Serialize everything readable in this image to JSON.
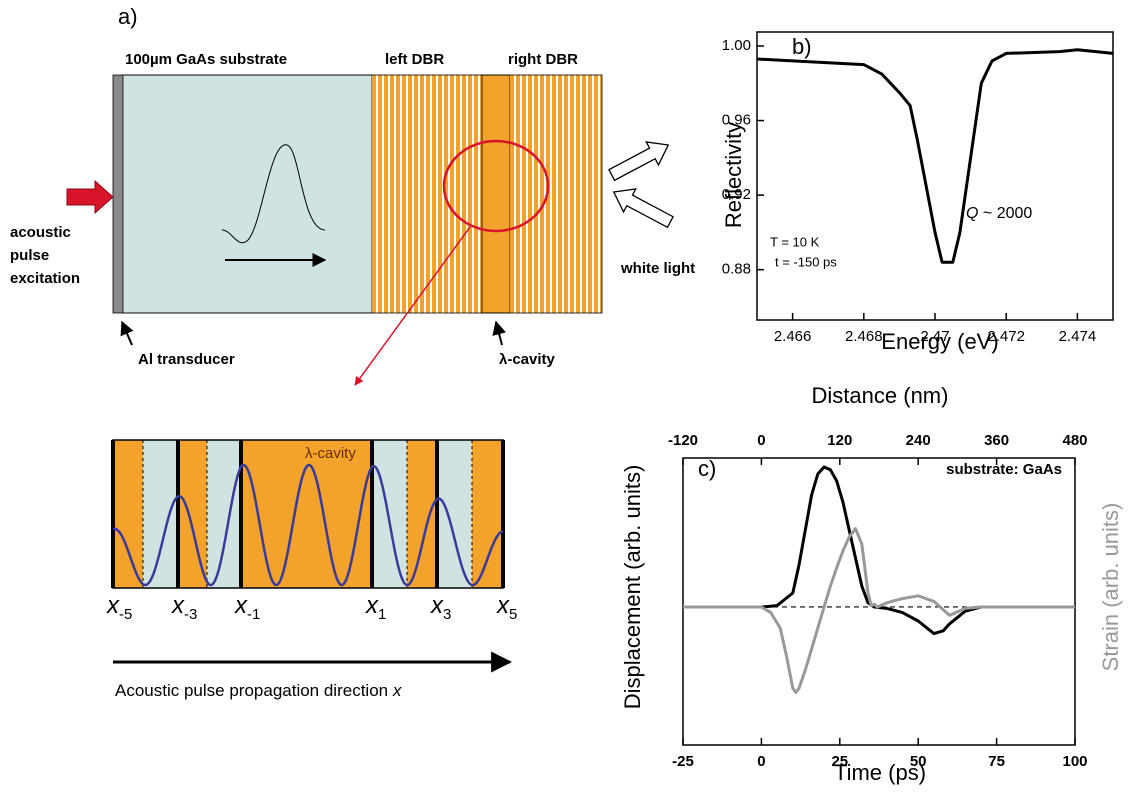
{
  "panel_a": {
    "label": "a)",
    "substrate": "100µm GaAs substrate",
    "left_dbr": "left DBR",
    "right_dbr": "right DBR",
    "excitation": [
      "acoustic",
      "pulse",
      "excitation"
    ],
    "transducer": "Al transducer",
    "cavity": "λ-cavity",
    "white_light": "white light"
  },
  "zoom": {
    "cavity": "λ-cavity",
    "positions": [
      {
        "base": "x",
        "sub": "-5"
      },
      {
        "base": "x",
        "sub": "-3"
      },
      {
        "base": "x",
        "sub": "-1"
      },
      {
        "base": "x",
        "sub": "1"
      },
      {
        "base": "x",
        "sub": "3"
      },
      {
        "base": "x",
        "sub": "5"
      }
    ],
    "direction": "Acoustic pulse propagation direction",
    "direction_var": "x"
  },
  "chart_data": [
    {
      "type": "line",
      "label": "b)",
      "x_label": "Energy (eV)",
      "y_label": "Reflectivity",
      "q_symbol": "Q",
      "q_text": "~ 2000",
      "conditions": [
        "T = 10 K",
        "t = -150 ps"
      ],
      "x": [
        2.465,
        2.467,
        2.468,
        2.4685,
        2.469,
        2.4693,
        2.4695,
        2.4698,
        2.47,
        2.4702,
        2.4705,
        2.4707,
        2.471,
        2.4713,
        2.4716,
        2.472,
        2.4735,
        2.474,
        2.475
      ],
      "values": [
        0.993,
        0.991,
        0.99,
        0.985,
        0.975,
        0.968,
        0.95,
        0.92,
        0.9,
        0.884,
        0.884,
        0.9,
        0.94,
        0.98,
        0.992,
        0.996,
        0.997,
        0.998,
        0.996
      ],
      "color": "#000000",
      "xlim": [
        2.465,
        2.475
      ],
      "ylim": [
        0.853,
        1.0075
      ],
      "xticks": [
        2.466,
        2.468,
        2.47,
        2.472,
        2.474
      ],
      "yticks": [
        0.88,
        0.92,
        0.96,
        {
          "value": 1,
          "label": "1.00"
        }
      ]
    },
    {
      "type": "line",
      "label": "c)",
      "x_label": "Time (ps)",
      "x2_label": "Distance (nm)",
      "annotation": "substrate: GaAs",
      "xlim": [
        -25,
        100
      ],
      "xticks": [
        -25,
        0,
        25,
        50,
        75,
        100
      ],
      "x2lim": [
        -120,
        480
      ],
      "x2ticks": [
        -120,
        0,
        120,
        240,
        360,
        480
      ],
      "ylim": [
        -0.986,
        1.064
      ],
      "y2lim": [
        -0.986,
        1.064
      ],
      "series": [
        {
          "name": "Displacement (arb. units)",
          "color": "#000000",
          "x": [
            -25,
            0,
            5,
            10,
            12,
            14,
            16,
            18,
            20,
            22,
            24,
            26,
            28,
            30,
            32,
            34,
            36,
            40,
            45,
            50,
            55,
            58,
            60,
            65,
            70,
            100
          ],
          "values": [
            0,
            0,
            0.01,
            0.1,
            0.3,
            0.55,
            0.8,
            0.95,
            1.0,
            0.98,
            0.9,
            0.75,
            0.55,
            0.35,
            0.15,
            0.03,
            0,
            -0.01,
            -0.04,
            -0.1,
            -0.19,
            -0.17,
            -0.12,
            -0.03,
            0,
            0
          ]
        },
        {
          "name": "Strain (arb. units)",
          "color": "#999999",
          "axis": "y2",
          "x": [
            -25,
            0,
            3,
            6,
            8,
            10,
            11,
            12,
            14,
            16,
            18,
            20,
            22,
            24,
            26,
            28,
            30,
            32,
            34,
            35,
            36,
            37,
            40,
            45,
            50,
            55,
            60,
            65,
            70,
            100
          ],
          "values": [
            0,
            0,
            -0.04,
            -0.15,
            -0.35,
            -0.58,
            -0.61,
            -0.58,
            -0.45,
            -0.3,
            -0.15,
            0,
            0.15,
            0.28,
            0.4,
            0.5,
            0.56,
            0.45,
            0.1,
            0.01,
            0.02,
            0,
            0.03,
            0.06,
            0.08,
            0.04,
            -0.06,
            -0.01,
            0,
            0
          ]
        }
      ]
    }
  ]
}
